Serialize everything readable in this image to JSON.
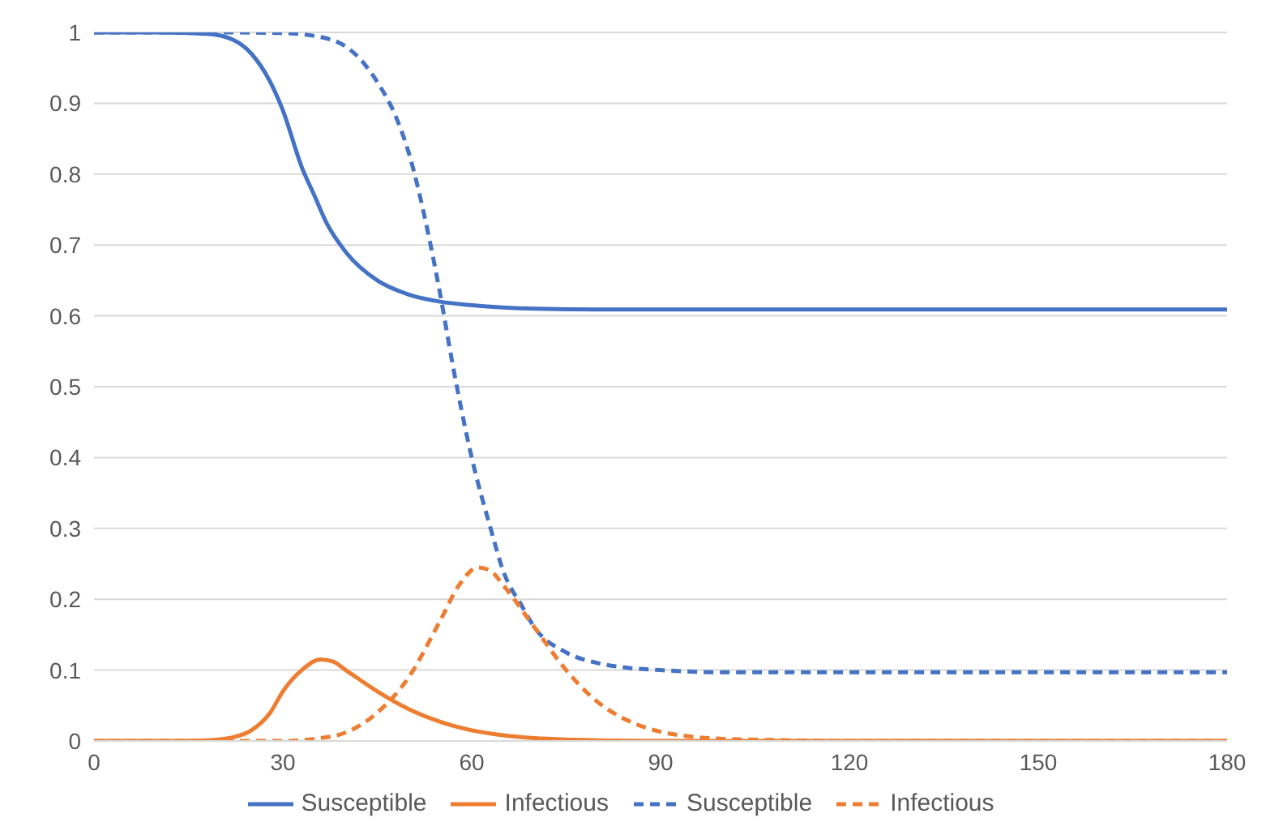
{
  "chart_data": {
    "type": "line",
    "xlim": [
      0,
      180
    ],
    "xticks": [
      0,
      30,
      60,
      90,
      120,
      150,
      180
    ],
    "ylim": [
      0,
      1
    ],
    "yticks": [
      0,
      0.1,
      0.2,
      0.3,
      0.4,
      0.5,
      0.6,
      0.7,
      0.8,
      0.9,
      1
    ],
    "grid": "y",
    "legend": "bottom",
    "marker": "none",
    "series": [
      {
        "name": "Susceptible",
        "color": "#4472c4",
        "line_style": "solid",
        "x": [
          0,
          10,
          18,
          22,
          25,
          28,
          30,
          33,
          35,
          37,
          40,
          45,
          50,
          55,
          60,
          70,
          80,
          100,
          140,
          180
        ],
        "values": [
          1,
          1,
          0.998,
          0.99,
          0.97,
          0.93,
          0.89,
          0.81,
          0.77,
          0.73,
          0.69,
          0.65,
          0.63,
          0.62,
          0.615,
          0.61,
          0.609,
          0.609,
          0.609,
          0.609
        ]
      },
      {
        "name": "Infectious",
        "color": "#ed7d31",
        "line_style": "solid",
        "x": [
          0,
          10,
          18,
          22,
          25,
          28,
          30,
          33,
          36,
          38,
          40,
          45,
          50,
          55,
          60,
          65,
          70,
          75,
          80,
          90,
          180
        ],
        "values": [
          0,
          0,
          0.001,
          0.005,
          0.015,
          0.04,
          0.07,
          0.1,
          0.115,
          0.112,
          0.1,
          0.07,
          0.045,
          0.027,
          0.015,
          0.008,
          0.004,
          0.002,
          0.001,
          0,
          0
        ]
      },
      {
        "name": "Susceptible",
        "color": "#4472c4",
        "line_style": "dashed",
        "x": [
          0,
          20,
          30,
          35,
          40,
          43,
          45,
          48,
          50,
          53,
          55,
          57,
          60,
          63,
          65,
          68,
          70,
          75,
          80,
          85,
          90,
          100,
          140,
          180
        ],
        "values": [
          1,
          1,
          0.999,
          0.995,
          0.98,
          0.955,
          0.93,
          0.88,
          0.83,
          0.72,
          0.63,
          0.53,
          0.4,
          0.3,
          0.24,
          0.19,
          0.16,
          0.125,
          0.11,
          0.103,
          0.1,
          0.097,
          0.097,
          0.097
        ]
      },
      {
        "name": "Infectious",
        "color": "#ed7d31",
        "line_style": "dashed",
        "x": [
          0,
          30,
          35,
          40,
          45,
          50,
          55,
          58,
          61,
          63,
          65,
          70,
          75,
          80,
          85,
          90,
          95,
          100,
          110,
          120,
          180
        ],
        "values": [
          0,
          0,
          0.003,
          0.012,
          0.04,
          0.09,
          0.17,
          0.22,
          0.245,
          0.24,
          0.22,
          0.16,
          0.1,
          0.055,
          0.028,
          0.013,
          0.006,
          0.003,
          0.001,
          0,
          0
        ]
      }
    ]
  }
}
